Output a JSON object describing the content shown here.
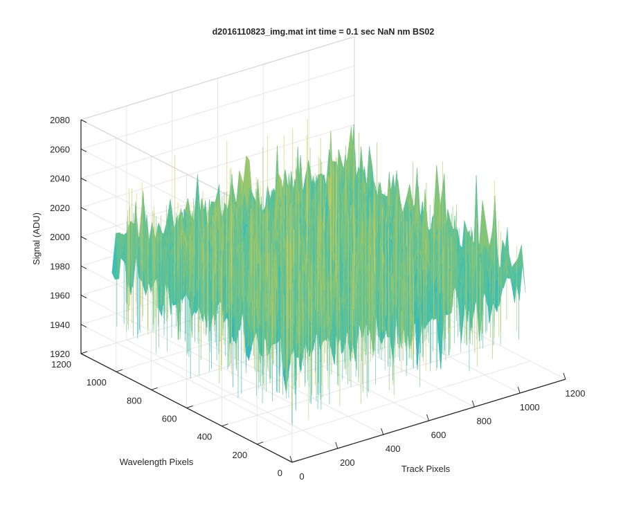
{
  "chart_data": {
    "type": "surface",
    "title": "d2016110823_img.mat int time = 0.1 sec  NaN nm BS02",
    "xlabel": "Track Pixels",
    "ylabel": "Wavelength Pixels",
    "zlabel": "Signal (ADU)",
    "xlim": [
      0,
      1200
    ],
    "ylim": [
      0,
      1200
    ],
    "zlim": [
      1920,
      2080
    ],
    "x_ticks": [
      "0",
      "200",
      "400",
      "600",
      "800",
      "1000",
      "1200"
    ],
    "y_ticks": [
      "0",
      "200",
      "400",
      "600",
      "800",
      "1000",
      "1200"
    ],
    "z_ticks": [
      "1920",
      "1940",
      "1960",
      "1980",
      "2000",
      "2020",
      "2040",
      "2060",
      "2080"
    ],
    "data_extent": {
      "x": [
        0,
        1024
      ],
      "y": [
        0,
        1024
      ]
    },
    "signal_summary": {
      "typical_min": 1940,
      "mean": 2000,
      "typical_max": 2035,
      "peak_max": 2080
    },
    "colormap": [
      "#0072bd",
      "#1ea9d8",
      "#41bfb0",
      "#8fc56f",
      "#d8ce5a"
    ],
    "grid": true,
    "box": true,
    "view": "3d-azimuth-37.5-elevation-30"
  }
}
